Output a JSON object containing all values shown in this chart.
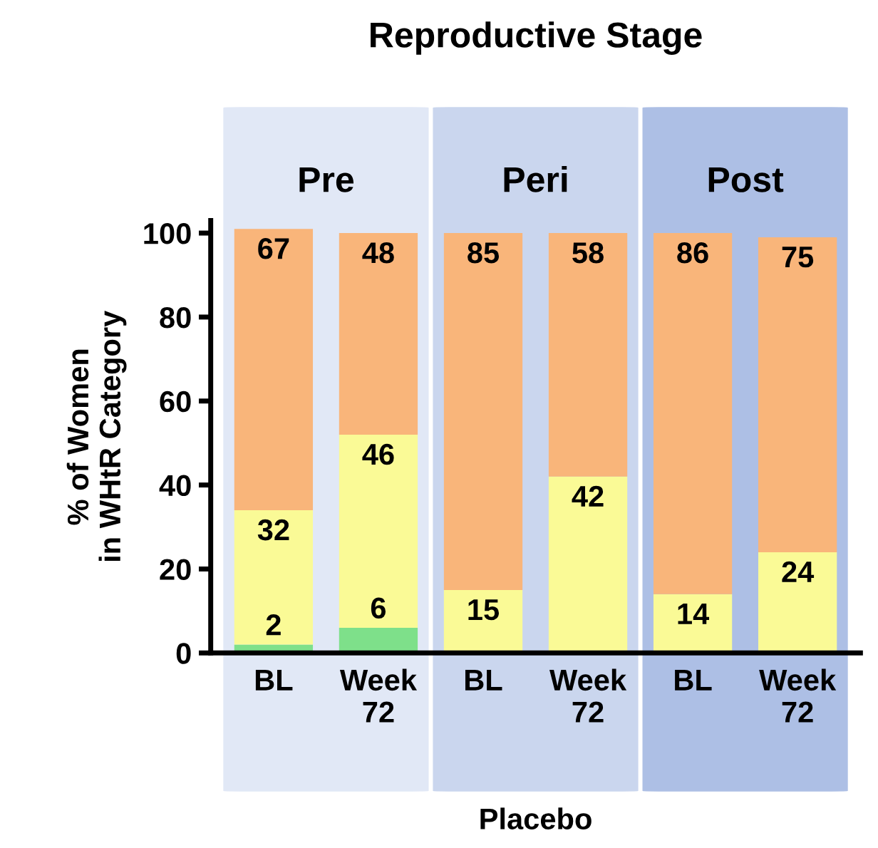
{
  "chart_data": {
    "type": "bar",
    "stacked": true,
    "title": "Reproductive Stage",
    "xlabel": "Placebo",
    "ylabel": "% of Women\nin WHtR Category",
    "categories": [
      "BL",
      "Week\n72",
      "BL",
      "Week\n72",
      "BL",
      "Week\n72"
    ],
    "series": [
      {
        "color": "#7ee08a",
        "values": [
          2,
          6,
          null,
          null,
          null,
          null
        ]
      },
      {
        "color": "#fafa96",
        "values": [
          32,
          46,
          15,
          42,
          14,
          24
        ]
      },
      {
        "color": "#f9b57a",
        "values": [
          67,
          48,
          85,
          58,
          86,
          75
        ]
      }
    ],
    "data_labels": true,
    "ylim": [
      0,
      103
    ],
    "yticks": [
      0,
      20,
      40,
      60,
      80,
      100
    ],
    "grid": false,
    "annotations": [
      "Pre",
      "Peri",
      "Post"
    ]
  }
}
